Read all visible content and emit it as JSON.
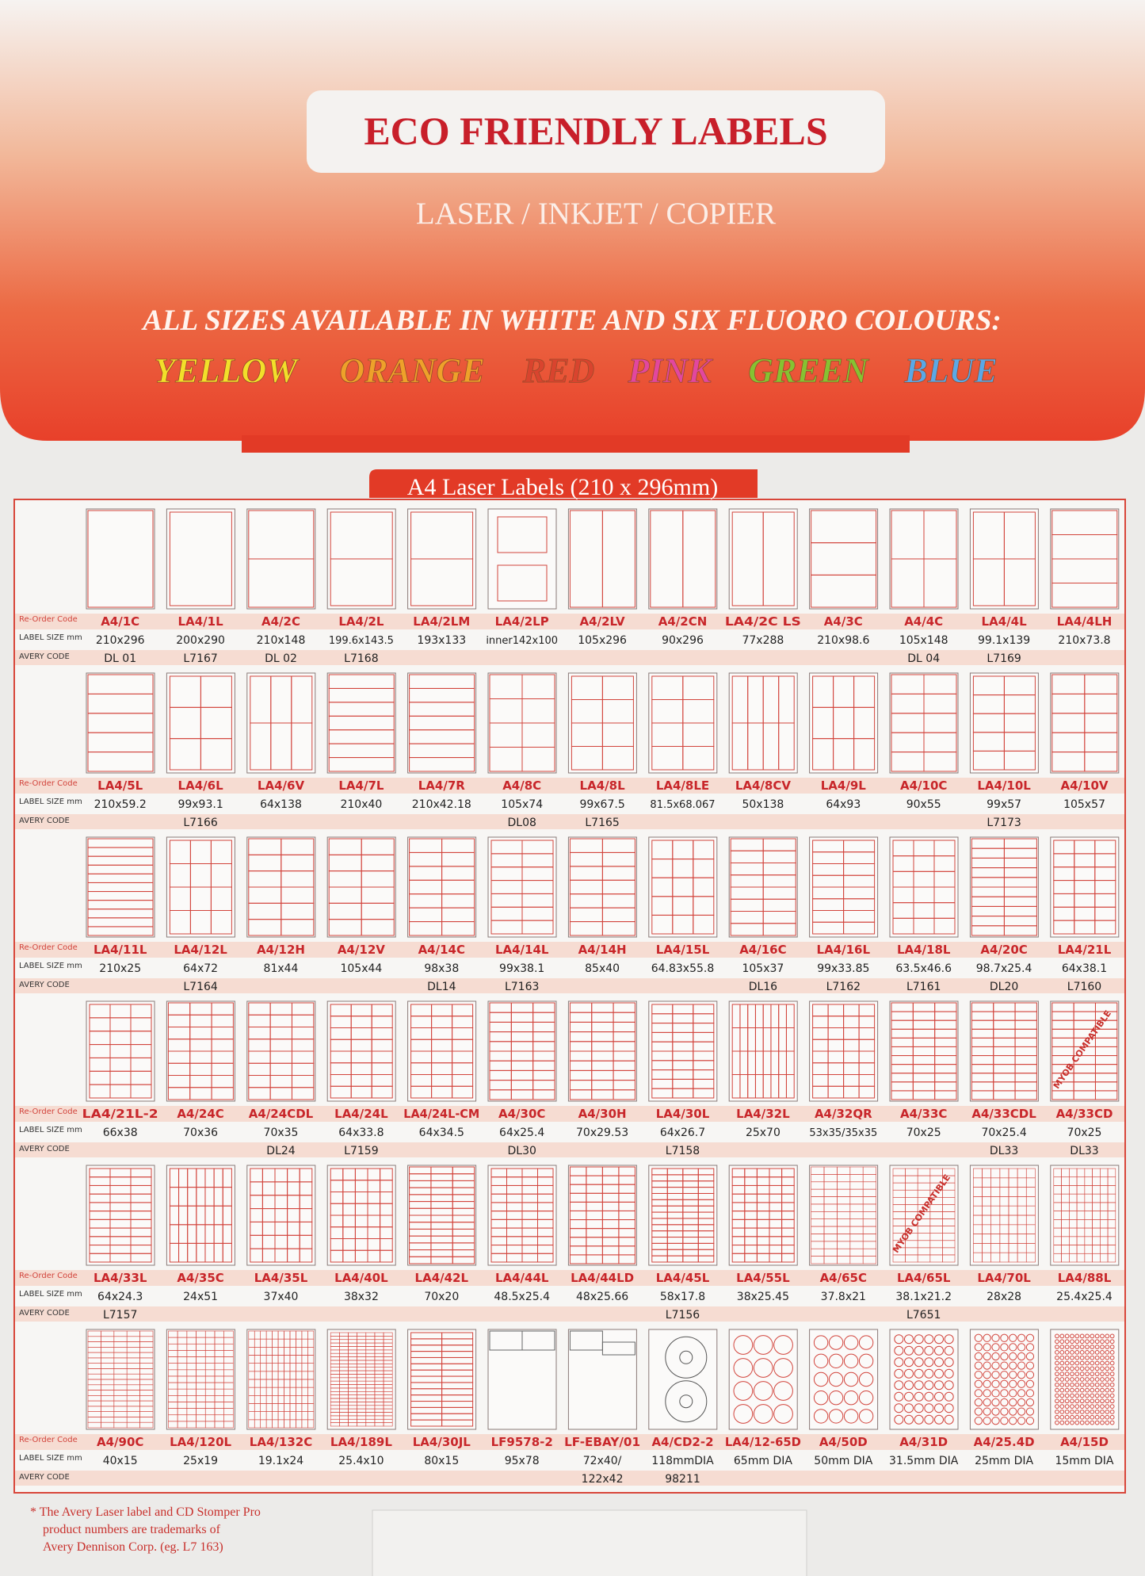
{
  "header": {
    "title": "ECO FRIENDLY LABELS",
    "subtitle": "LASER / INKJET / COPIER",
    "availability": "ALL SIZES AVAILABLE IN WHITE AND SIX FLUORO COLOURS:",
    "colours": [
      {
        "name": "YELLOW",
        "color": "#f2df2a"
      },
      {
        "name": "ORANGE",
        "color": "#eea12a"
      },
      {
        "name": "RED",
        "color": "#d9442e"
      },
      {
        "name": "PINK",
        "color": "#e2479f"
      },
      {
        "name": "GREEN",
        "color": "#86c232"
      },
      {
        "name": "BLUE",
        "color": "#5ba8e6"
      }
    ]
  },
  "table": {
    "title": "A4 Laser Labels (210 x 296mm)",
    "row_labels": [
      "Re-Order Code",
      "LABEL SIZE mm",
      "AVERY CODE"
    ],
    "rows": [
      [
        {
          "code": "A4/1C",
          "size": "210x296",
          "avery": "DL 01"
        },
        {
          "code": "LA4/1L",
          "size": "200x290",
          "avery": "L7167"
        },
        {
          "code": "A4/2C",
          "size": "210x148",
          "avery": "DL 02"
        },
        {
          "code": "LA4/2L",
          "size": "199.6x143.5",
          "avery": "L7168"
        },
        {
          "code": "LA4/2LM",
          "size": "193x133"
        },
        {
          "code": "LA4/2LP",
          "size": "inner142x100"
        },
        {
          "code": "A4/2LV",
          "size": "105x296"
        },
        {
          "code": "A4/2CN",
          "size": "90x296"
        },
        {
          "code": "LA4/2C LS",
          "size": "77x288"
        },
        {
          "code": "A4/3C",
          "size": "210x98.6"
        },
        {
          "code": "A4/4C",
          "size": "105x148",
          "avery": "DL 04"
        },
        {
          "code": "LA4/4L",
          "size": "99.1x139",
          "avery": "L7169"
        },
        {
          "code": "LA4/4LH",
          "size": "210x73.8"
        }
      ],
      [
        {
          "code": "LA4/5L",
          "size": "210x59.2"
        },
        {
          "code": "LA4/6L",
          "size": "99x93.1",
          "avery": "L7166"
        },
        {
          "code": "LA4/6V",
          "size": "64x138"
        },
        {
          "code": "LA4/7L",
          "size": "210x40"
        },
        {
          "code": "LA4/7R",
          "size": "210x42.18"
        },
        {
          "code": "A4/8C",
          "size": "105x74",
          "avery": "DL08"
        },
        {
          "code": "LA4/8L",
          "size": "99x67.5",
          "avery": "L7165"
        },
        {
          "code": "LA4/8LE",
          "size": "81.5x68.067"
        },
        {
          "code": "LA4/8CV",
          "size": "50x138"
        },
        {
          "code": "LA4/9L",
          "size": "64x93"
        },
        {
          "code": "A4/10C",
          "size": "90x55"
        },
        {
          "code": "LA4/10L",
          "size": "99x57",
          "avery": "L7173"
        },
        {
          "code": "A4/10V",
          "size": "105x57"
        }
      ],
      [
        {
          "code": "LA4/11L",
          "size": "210x25"
        },
        {
          "code": "LA4/12L",
          "size": "64x72",
          "avery": "L7164"
        },
        {
          "code": "A4/12H",
          "size": "81x44"
        },
        {
          "code": "A4/12V",
          "size": "105x44"
        },
        {
          "code": "A4/14C",
          "size": "98x38",
          "avery": "DL14"
        },
        {
          "code": "LA4/14L",
          "size": "99x38.1",
          "avery": "L7163"
        },
        {
          "code": "A4/14H",
          "size": "85x40"
        },
        {
          "code": "LA4/15L",
          "size": "64.83x55.8"
        },
        {
          "code": "A4/16C",
          "size": "105x37",
          "avery": "DL16"
        },
        {
          "code": "LA4/16L",
          "size": "99x33.85",
          "avery": "L7162"
        },
        {
          "code": "LA4/18L",
          "size": "63.5x46.6",
          "avery": "L7161"
        },
        {
          "code": "A4/20C",
          "size": "98.7x25.4",
          "avery": "DL20"
        },
        {
          "code": "LA4/21L",
          "size": "64x38.1",
          "avery": "L7160"
        }
      ],
      [
        {
          "code": "LA4/21L-2",
          "size": "66x38"
        },
        {
          "code": "A4/24C",
          "size": "70x36"
        },
        {
          "code": "A4/24CDL",
          "size": "70x35",
          "avery": "DL24"
        },
        {
          "code": "LA4/24L",
          "size": "64x33.8",
          "avery": "L7159"
        },
        {
          "code": "LA4/24L-CM",
          "size": "64x34.5"
        },
        {
          "code": "A4/30C",
          "size": "64x25.4",
          "avery": "DL30"
        },
        {
          "code": "A4/30H",
          "size": "70x29.53"
        },
        {
          "code": "LA4/30L",
          "size": "64x26.7",
          "avery": "L7158"
        },
        {
          "code": "LA4/32L",
          "size": "25x70"
        },
        {
          "code": "A4/32QR",
          "size": "53x35/35x35"
        },
        {
          "code": "A4/33C",
          "size": "70x25"
        },
        {
          "code": "A4/33CDL",
          "size": "70x25.4",
          "avery": "DL33"
        },
        {
          "code": "A4/33CD",
          "size": "70x25",
          "avery": "DL33",
          "stamp": "MYOB COMPATIBLE"
        }
      ],
      [
        {
          "code": "LA4/33L",
          "size": "64x24.3",
          "avery": "L7157"
        },
        {
          "code": "A4/35C",
          "size": "24x51"
        },
        {
          "code": "LA4/35L",
          "size": "37x40"
        },
        {
          "code": "LA4/40L",
          "size": "38x32"
        },
        {
          "code": "LA4/42L",
          "size": "70x20"
        },
        {
          "code": "LA4/44L",
          "size": "48.5x25.4"
        },
        {
          "code": "LA4/44LD",
          "size": "48x25.66"
        },
        {
          "code": "LA4/45L",
          "size": "58x17.8",
          "avery": "L7156"
        },
        {
          "code": "LA4/55L",
          "size": "38x25.45"
        },
        {
          "code": "A4/65C",
          "size": "37.8x21"
        },
        {
          "code": "LA4/65L",
          "size": "38.1x21.2",
          "avery": "L7651",
          "stamp": "MYOB COMPATIBLE"
        },
        {
          "code": "LA4/70L",
          "size": "28x28"
        },
        {
          "code": "LA4/88L",
          "size": "25.4x25.4"
        }
      ],
      [
        {
          "code": "A4/90C",
          "size": "40x15"
        },
        {
          "code": "LA4/120L",
          "size": "25x19"
        },
        {
          "code": "LA4/132C",
          "size": "19.1x24"
        },
        {
          "code": "LA4/189L",
          "size": "25.4x10"
        },
        {
          "code": "LA4/30JL",
          "size": "80x15"
        },
        {
          "code": "LF9578-2",
          "size": "95x78"
        },
        {
          "code": "LF-EBAY/01",
          "size": "72x40/",
          "avery": "122x42"
        },
        {
          "code": "A4/CD2-2",
          "size": "118mmDIA",
          "avery": "98211"
        },
        {
          "code": "LA4/12-65D",
          "size": "65mm DIA"
        },
        {
          "code": "A4/50D",
          "size": "50mm DIA"
        },
        {
          "code": "A4/31D",
          "size": "31.5mm DIA"
        },
        {
          "code": "A4/25.4D",
          "size": "25mm DIA"
        },
        {
          "code": "A4/15D",
          "size": "15mm DIA"
        }
      ]
    ]
  },
  "footnote": [
    "* The Avery Laser label and CD Stomper Pro",
    "product numbers are trademarks of",
    "Avery Dennison Corp. (eg. L7 163)"
  ]
}
